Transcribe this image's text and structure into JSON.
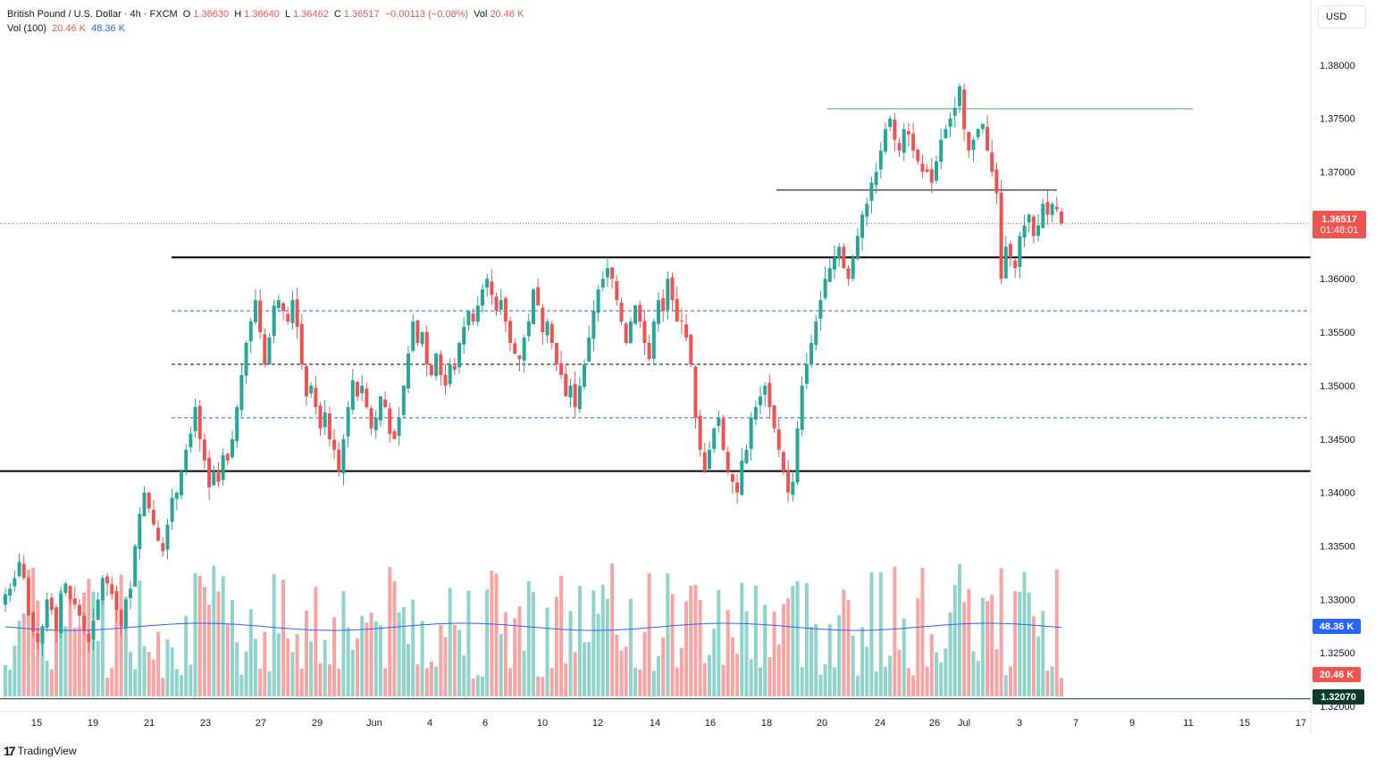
{
  "header": {
    "symbol": "British Pound / U.S. Dollar · 4h · FXCM",
    "open_label": "O",
    "open": "1.36630",
    "high_label": "H",
    "high": "1.36640",
    "low_label": "L",
    "low": "1.36462",
    "close_label": "C",
    "close": "1.36517",
    "change": "−0.00113 (−0.08%)",
    "vol_label": "Vol",
    "vol": "20.46 K",
    "vol_ma_label": "Vol (100)",
    "vol_ma_1": "20.46 K",
    "vol_ma_2": "48.36 K"
  },
  "currency_button": "USD",
  "branding": {
    "mark": "17",
    "name": "TradingView"
  },
  "badges": {
    "last_price": "1.36517",
    "countdown": "01:48:01",
    "vol_ma_value": "48.36 K",
    "vol_value": "20.46 K",
    "crosshair_price": "1.32070"
  },
  "colors": {
    "up": "#26a69a",
    "down": "#ef5350",
    "vol_up": "#8fd3cb",
    "vol_down": "#f6a5a3",
    "ma_line": "#2962ff",
    "level_dashed_blue": "#2962ff",
    "level_black": "#000000",
    "level_green": "#4caf50",
    "last_price_line": "#ef5350",
    "crosshair_badge": "#0c3b2e"
  },
  "chart_data": {
    "type": "candlestick",
    "timeframe": "4h",
    "y_axis": {
      "ticks": [
        "1.38000",
        "1.37500",
        "1.37000",
        "1.36000",
        "1.35500",
        "1.35000",
        "1.34500",
        "1.34000",
        "1.33500",
        "1.33000",
        "1.32500",
        "1.32000"
      ],
      "ylim": [
        1.3195,
        1.385
      ]
    },
    "x_axis": {
      "ticks": [
        "15",
        "19",
        "21",
        "23",
        "27",
        "29",
        "Jun",
        "4",
        "6",
        "10",
        "12",
        "14",
        "16",
        "18",
        "20",
        "24",
        "26",
        "Jul",
        "3",
        "7",
        "9",
        "11",
        "15",
        "17"
      ]
    },
    "horizontal_levels": [
      {
        "price": 1.3759,
        "style": "solid",
        "color": "green",
        "from": "Jun 24",
        "to": "Jul 10"
      },
      {
        "price": 1.3683,
        "style": "solid",
        "color": "black",
        "from": "Jun 23",
        "to": "Jul 4"
      },
      {
        "price": 1.362,
        "style": "solid-thick",
        "color": "black",
        "from": "May 21",
        "to": "end"
      },
      {
        "price": 1.357,
        "style": "dashed",
        "color": "blue",
        "from": "May 21",
        "to": "end"
      },
      {
        "price": 1.352,
        "style": "dashed",
        "color": "black",
        "from": "May 21",
        "to": "end"
      },
      {
        "price": 1.347,
        "style": "dashed",
        "color": "blue",
        "from": "May 21",
        "to": "end"
      },
      {
        "price": 1.342,
        "style": "solid-thick",
        "color": "black",
        "from": "start",
        "to": "end"
      },
      {
        "price": 1.3207,
        "style": "solid",
        "color": "dark-green",
        "from": "start",
        "to": "end"
      }
    ],
    "last_price": 1.36517,
    "candles_close": [
      1.3305,
      1.331,
      1.332,
      1.3335,
      1.332,
      1.3285,
      1.327,
      1.326,
      1.3275,
      1.33,
      1.329,
      1.327,
      1.3305,
      1.3315,
      1.33,
      1.3295,
      1.3285,
      1.327,
      1.326,
      1.328,
      1.33,
      1.332,
      1.3315,
      1.3305,
      1.329,
      1.3275,
      1.33,
      1.331,
      1.335,
      1.338,
      1.34,
      1.3385,
      1.337,
      1.3355,
      1.3345,
      1.337,
      1.3395,
      1.34,
      1.342,
      1.344,
      1.3455,
      1.348,
      1.345,
      1.343,
      1.3405,
      1.342,
      1.341,
      1.3435,
      1.343,
      1.345,
      1.348,
      1.351,
      1.354,
      1.356,
      1.358,
      1.355,
      1.352,
      1.3545,
      1.3575,
      1.358,
      1.357,
      1.356,
      1.358,
      1.3555,
      1.352,
      1.349,
      1.35,
      1.348,
      1.346,
      1.3475,
      1.345,
      1.344,
      1.342,
      1.345,
      1.348,
      1.3505,
      1.349,
      1.35,
      1.348,
      1.346,
      1.347,
      1.349,
      1.348,
      1.3455,
      1.345,
      1.347,
      1.35,
      1.353,
      1.356,
      1.354,
      1.355,
      1.352,
      1.351,
      1.353,
      1.351,
      1.35,
      1.352,
      1.3515,
      1.354,
      1.3555,
      1.357,
      1.356,
      1.3575,
      1.359,
      1.36,
      1.3585,
      1.357,
      1.358,
      1.356,
      1.354,
      1.353,
      1.3525,
      1.3545,
      1.356,
      1.359,
      1.3575,
      1.355,
      1.356,
      1.354,
      1.352,
      1.351,
      1.349,
      1.35,
      1.348,
      1.35,
      1.352,
      1.3545,
      1.357,
      1.359,
      1.36,
      1.361,
      1.36,
      1.358,
      1.356,
      1.354,
      1.356,
      1.3575,
      1.356,
      1.354,
      1.3525,
      1.356,
      1.358,
      1.357,
      1.36,
      1.358,
      1.356,
      1.356,
      1.3545,
      1.352,
      1.347,
      1.344,
      1.342,
      1.344,
      1.346,
      1.347,
      1.344,
      1.342,
      1.341,
      1.34,
      1.343,
      1.344,
      1.347,
      1.348,
      1.349,
      1.35,
      1.348,
      1.346,
      1.344,
      1.342,
      1.34,
      1.341,
      1.346,
      1.35,
      1.352,
      1.354,
      1.356,
      1.358,
      1.36,
      1.361,
      1.362,
      1.363,
      1.361,
      1.36,
      1.362,
      1.364,
      1.366,
      1.367,
      1.369,
      1.37,
      1.372,
      1.374,
      1.375,
      1.373,
      1.372,
      1.374,
      1.3735,
      1.372,
      1.371,
      1.37,
      1.37,
      1.369,
      1.371,
      1.373,
      1.374,
      1.375,
      1.376,
      1.378,
      1.374,
      1.372,
      1.373,
      1.374,
      1.3745,
      1.372,
      1.37,
      1.368,
      1.36,
      1.363,
      1.362,
      1.361,
      1.364,
      1.365,
      1.366,
      1.364,
      1.365,
      1.367,
      1.366,
      1.367,
      1.3665,
      1.3652
    ],
    "volume_ma_100": 48.36,
    "last_volume": 20.46
  }
}
